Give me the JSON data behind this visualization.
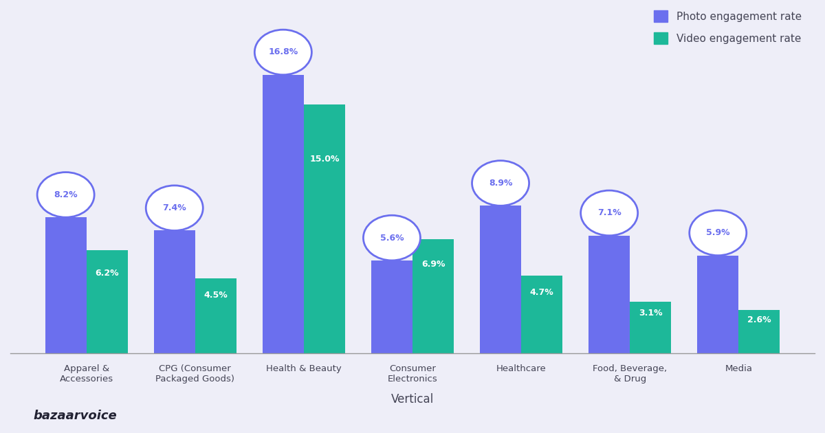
{
  "categories": [
    "Apparel &\nAccessories",
    "CPG (Consumer\nPackaged Goods)",
    "Health & Beauty",
    "Consumer\nElectronics",
    "Healthcare",
    "Food, Beverage,\n& Drug",
    "Media"
  ],
  "photo_values": [
    8.2,
    7.4,
    16.8,
    5.6,
    8.9,
    7.1,
    5.9
  ],
  "video_values": [
    6.2,
    4.5,
    15.0,
    6.9,
    4.7,
    3.1,
    2.6
  ],
  "photo_color": "#6B6FEE",
  "video_color": "#1DB899",
  "background_color": "#EEEEF8",
  "xlabel": "Vertical",
  "circle_bg": "#FFFFFF",
  "circle_edge": "#6B6FEE",
  "bar_width": 0.38,
  "legend_photo": "Photo engagement rate",
  "legend_video": "Video engagement rate",
  "brand_text": "bazaarvoice",
  "ylim": [
    0,
    20
  ],
  "label_color_photo": "#6B6FEE",
  "label_color_video": "#FFFFFF",
  "text_color": "#444455"
}
